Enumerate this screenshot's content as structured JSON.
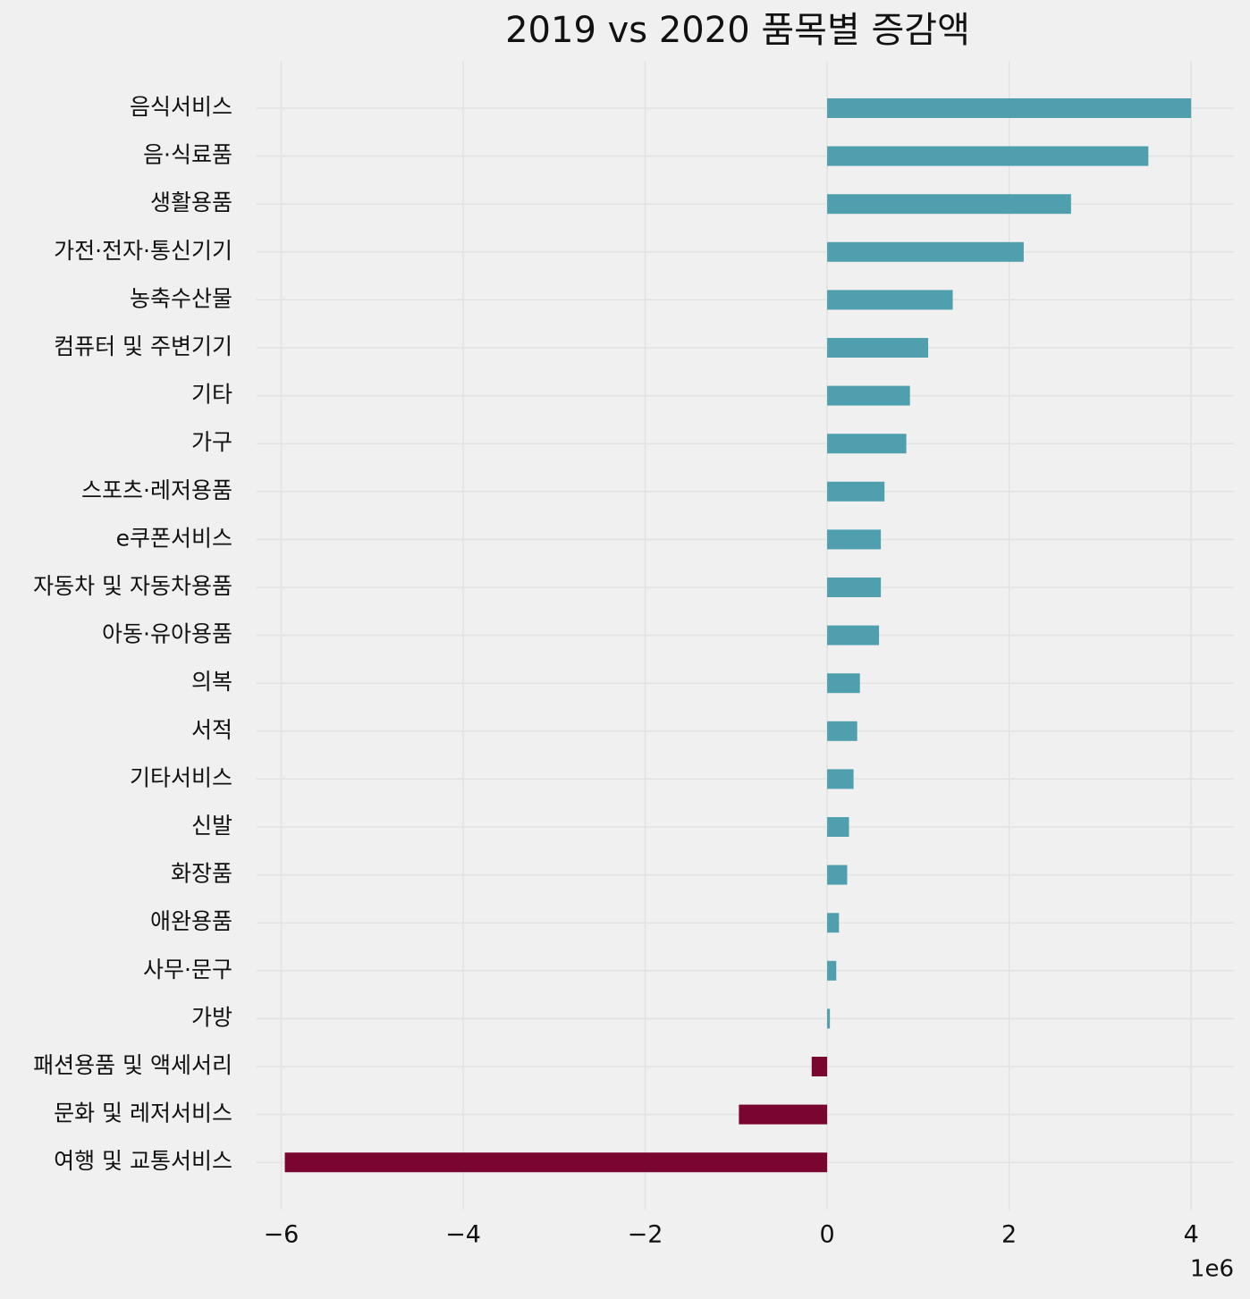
{
  "chart_data": {
    "type": "barh",
    "title": "2019 vs 2020 품목별 증감액",
    "categories": [
      "음식서비스",
      "음·식료품",
      "생활용품",
      "가전·전자·통신기기",
      "농축수산물",
      "컴퓨터 및 주변기기",
      "기타",
      "가구",
      "스포츠·레저용품",
      "e쿠폰서비스",
      "자동차 및 자동차용품",
      "아동·유아용품",
      "의복",
      "서적",
      "기타서비스",
      "신발",
      "화장품",
      "애완용품",
      "사무·문구",
      "가방",
      "패션용품 및 액세서리",
      "문화 및 레저서비스",
      "여행 및 교통서비스"
    ],
    "values": [
      4000000,
      3530000,
      2680000,
      2160000,
      1380000,
      1110000,
      910000,
      870000,
      630000,
      590000,
      590000,
      570000,
      360000,
      330000,
      290000,
      240000,
      220000,
      130000,
      100000,
      30000,
      -170000,
      -970000,
      -5960000
    ],
    "positive_color": "#4f9fae",
    "negative_color": "#7a0530",
    "xlim": [
      -6270000,
      4470000
    ],
    "xticks": [
      {
        "value": -6000000,
        "label": "−6"
      },
      {
        "value": -4000000,
        "label": "−4"
      },
      {
        "value": -2000000,
        "label": "−2"
      },
      0,
      {
        "value": 2000000,
        "label": "2"
      },
      {
        "value": 4000000,
        "label": "4"
      }
    ],
    "x_offset_label": "1e6",
    "grid": true
  }
}
